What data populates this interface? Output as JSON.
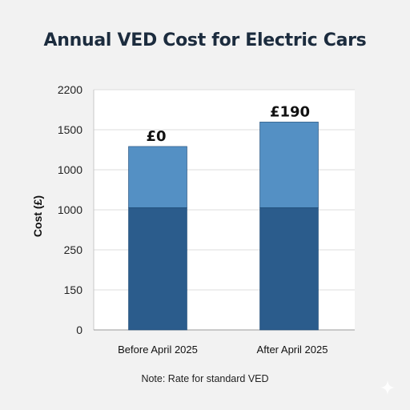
{
  "chart_data": {
    "type": "bar",
    "stacked": true,
    "title": "Annual VED Cost for Electric Cars",
    "ylabel": "Cost (£)",
    "xlabel": "",
    "categories": [
      "Before April 2025",
      "After April 2025"
    ],
    "ytick_labels": [
      "0",
      "150",
      "250",
      "1000",
      "1000",
      "1500",
      "2200"
    ],
    "series": [
      {
        "values": [
          1000,
          1000
        ],
        "color": "#2b5c8c"
      },
      {
        "values": [
          500,
          700
        ],
        "color": "#5490c4"
      }
    ],
    "totals": [
      1500,
      1700
    ],
    "data_labels": [
      "£0",
      "£190"
    ],
    "grid": true,
    "note": "Note: Rate for standard VED"
  },
  "colors": {
    "background": "#f2f2f2",
    "plot_background": "#ffffff",
    "grid": "#dcdcdc",
    "text": "#1c2a3a"
  },
  "icons": {
    "corner": "sparkle-icon"
  }
}
